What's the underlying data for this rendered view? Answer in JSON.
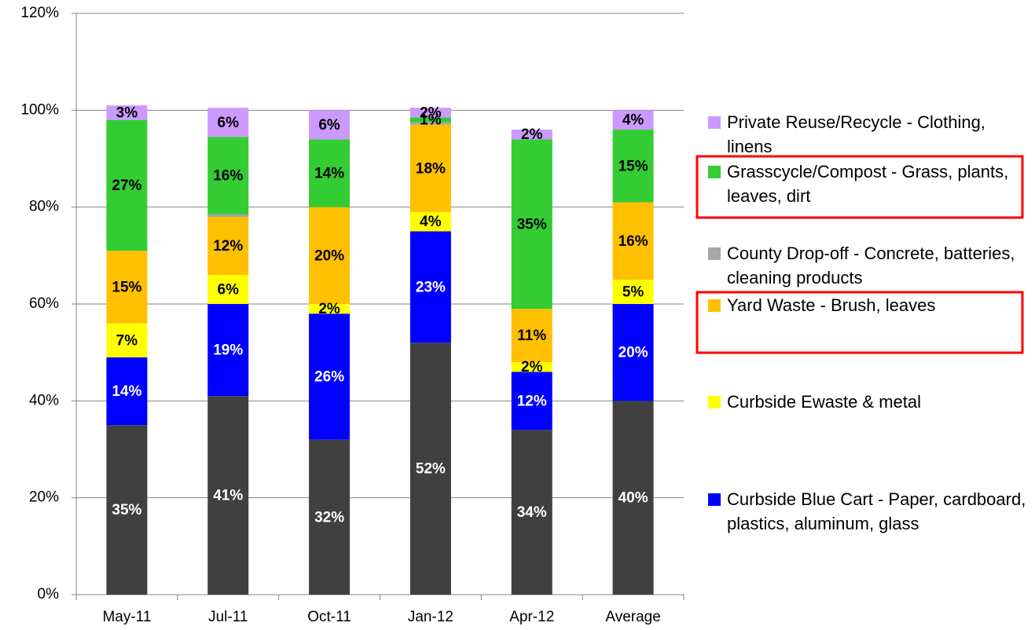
{
  "chart_data": {
    "type": "stacked_bar",
    "categories": [
      "May-11",
      "Jul-11",
      "Oct-11",
      "Jan-12",
      "Apr-12",
      "Average"
    ],
    "series": [
      {
        "color": "#404040",
        "label_color": "#ffffff",
        "values": [
          35,
          41,
          32,
          52,
          34,
          40
        ],
        "value_labels": [
          "35%",
          "41%",
          "32%",
          "52%",
          "34%",
          "40%"
        ]
      },
      {
        "name": "Curbside Blue Cart - Paper, cardboard, plastics, aluminum, glass",
        "color": "#0000ff",
        "label_color": "#ffffff",
        "values": [
          14,
          19,
          26,
          23,
          12,
          20
        ],
        "value_labels": [
          "14%",
          "19%",
          "26%",
          "23%",
          "12%",
          "20%"
        ]
      },
      {
        "name": "Curbside Ewaste & metal",
        "color": "#ffff00",
        "label_color": "#000000",
        "values": [
          7,
          6,
          2,
          4,
          2,
          5
        ],
        "value_labels": [
          "7%",
          "6%",
          "2%",
          "4%",
          "2%",
          "5%"
        ]
      },
      {
        "name": "Yard Waste - Brush, leaves",
        "color": "#ffc000",
        "label_color": "#000000",
        "values": [
          15,
          12,
          20,
          18,
          11,
          16
        ],
        "value_labels": [
          "15%",
          "12%",
          "20%",
          "18%",
          "11%",
          "16%"
        ]
      },
      {
        "name": "County Drop-off - Concrete, batteries, cleaning products",
        "color": "#a6a6a6",
        "label_color": "#000000",
        "values": [
          0,
          0.5,
          0,
          0.5,
          0,
          0
        ],
        "value_labels": [
          null,
          null,
          null,
          null,
          null,
          null
        ]
      },
      {
        "name": "Grasscycle/Compost - Grass, plants, leaves, dirt",
        "color": "#33cc33",
        "label_color": "#000000",
        "values": [
          27,
          16,
          14,
          1,
          35,
          15
        ],
        "value_labels": [
          "27%",
          "16%",
          "14%",
          "1%",
          "35%",
          "15%"
        ]
      },
      {
        "name": "Private Reuse/Recycle - Clothing, linens",
        "color": "#cc99ff",
        "label_color": "#000000",
        "values": [
          3,
          6,
          6,
          2,
          2,
          4
        ],
        "value_labels": [
          "3%",
          "6%",
          "6%",
          "2%",
          "2%",
          "4%"
        ]
      }
    ],
    "ylim": [
      0,
      120
    ],
    "yticks": [
      {
        "value": 0,
        "label": "0%"
      },
      {
        "value": 20,
        "label": "20%"
      },
      {
        "value": 40,
        "label": "40%"
      },
      {
        "value": 60,
        "label": "60%"
      },
      {
        "value": 80,
        "label": "80%"
      },
      {
        "value": 100,
        "label": "100%"
      },
      {
        "value": 120,
        "label": "120%"
      }
    ],
    "grid": true
  }
}
